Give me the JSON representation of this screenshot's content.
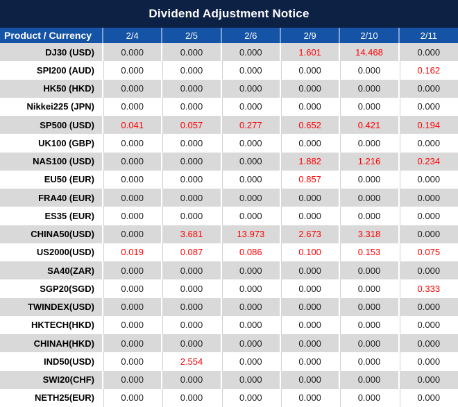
{
  "title": "Dividend Adjustment Notice",
  "colors": {
    "title_bg": "#0d2145",
    "header_bg": "#1453a5",
    "header_separator": "#7fa3d6",
    "row_alt_bg": "#d9d9d9",
    "value_highlight": "#ff0000"
  },
  "table": {
    "product_header": "Product / Currency",
    "date_headers": [
      "2/4",
      "2/5",
      "2/6",
      "2/9",
      "2/10",
      "2/11"
    ],
    "rows": [
      {
        "product": "DJ30 (USD)",
        "values": [
          "0.000",
          "0.000",
          "0.000",
          "1.601",
          "14.468",
          "0.000"
        ]
      },
      {
        "product": "SPI200 (AUD)",
        "values": [
          "0.000",
          "0.000",
          "0.000",
          "0.000",
          "0.000",
          "0.162"
        ]
      },
      {
        "product": "HK50 (HKD)",
        "values": [
          "0.000",
          "0.000",
          "0.000",
          "0.000",
          "0.000",
          "0.000"
        ]
      },
      {
        "product": "Nikkei225 (JPN)",
        "values": [
          "0.000",
          "0.000",
          "0.000",
          "0.000",
          "0.000",
          "0.000"
        ]
      },
      {
        "product": "SP500 (USD)",
        "values": [
          "0.041",
          "0.057",
          "0.277",
          "0.652",
          "0.421",
          "0.194"
        ]
      },
      {
        "product": "UK100 (GBP)",
        "values": [
          "0.000",
          "0.000",
          "0.000",
          "0.000",
          "0.000",
          "0.000"
        ]
      },
      {
        "product": "NAS100 (USD)",
        "values": [
          "0.000",
          "0.000",
          "0.000",
          "1.882",
          "1.216",
          "0.234"
        ]
      },
      {
        "product": "EU50 (EUR)",
        "values": [
          "0.000",
          "0.000",
          "0.000",
          "0.857",
          "0.000",
          "0.000"
        ]
      },
      {
        "product": "FRA40 (EUR)",
        "values": [
          "0.000",
          "0.000",
          "0.000",
          "0.000",
          "0.000",
          "0.000"
        ]
      },
      {
        "product": "ES35 (EUR)",
        "values": [
          "0.000",
          "0.000",
          "0.000",
          "0.000",
          "0.000",
          "0.000"
        ]
      },
      {
        "product": "CHINA50(USD)",
        "values": [
          "0.000",
          "3.681",
          "13.973",
          "2.673",
          "3.318",
          "0.000"
        ]
      },
      {
        "product": "US2000(USD)",
        "values": [
          "0.019",
          "0.087",
          "0.086",
          "0.100",
          "0.153",
          "0.075"
        ]
      },
      {
        "product": "SA40(ZAR)",
        "values": [
          "0.000",
          "0.000",
          "0.000",
          "0.000",
          "0.000",
          "0.000"
        ]
      },
      {
        "product": "SGP20(SGD)",
        "values": [
          "0.000",
          "0.000",
          "0.000",
          "0.000",
          "0.000",
          "0.333"
        ]
      },
      {
        "product": "TWINDEX(USD)",
        "values": [
          "0.000",
          "0.000",
          "0.000",
          "0.000",
          "0.000",
          "0.000"
        ]
      },
      {
        "product": "HKTECH(HKD)",
        "values": [
          "0.000",
          "0.000",
          "0.000",
          "0.000",
          "0.000",
          "0.000"
        ]
      },
      {
        "product": "CHINAH(HKD)",
        "values": [
          "0.000",
          "0.000",
          "0.000",
          "0.000",
          "0.000",
          "0.000"
        ]
      },
      {
        "product": "IND50(USD)",
        "values": [
          "0.000",
          "2.554",
          "0.000",
          "0.000",
          "0.000",
          "0.000"
        ]
      },
      {
        "product": "SWI20(CHF)",
        "values": [
          "0.000",
          "0.000",
          "0.000",
          "0.000",
          "0.000",
          "0.000"
        ]
      },
      {
        "product": "NETH25(EUR)",
        "values": [
          "0.000",
          "0.000",
          "0.000",
          "0.000",
          "0.000",
          "0.000"
        ]
      }
    ]
  }
}
